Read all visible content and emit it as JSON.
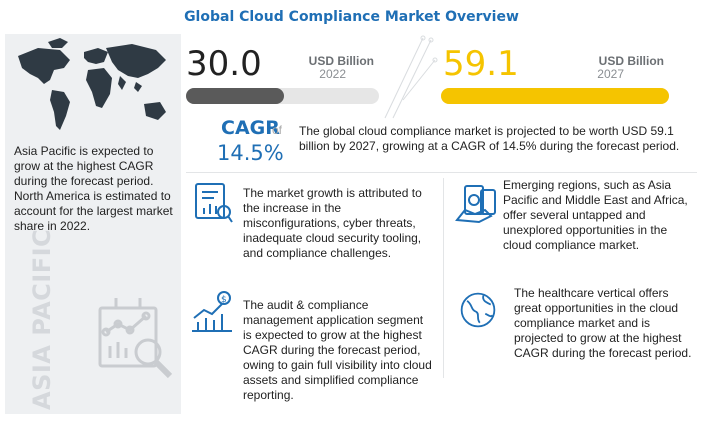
{
  "title": "Global Cloud Compliance Market Overview",
  "left_panel": {
    "text": "Asia Pacific is expected to grow at the highest CAGR during the forecast period. North America is estimated to account for the largest market share in 2022.",
    "region_label": "ASIA PACIFIC",
    "icons": [
      "world-map-icon",
      "analytics-magnifier-icon"
    ]
  },
  "stats": {
    "left": {
      "value": "30.0",
      "unit": "USD Billion",
      "year": "2022",
      "bar_fraction": 0.51,
      "color": "#5a5a5a",
      "track_color": "#e6e6e6"
    },
    "right": {
      "value": "59.1",
      "unit": "USD Billion",
      "year": "2027",
      "bar_fraction": 1.0,
      "color": "#f5c400",
      "track_color": "#e6e6e6"
    }
  },
  "cagr": {
    "label": "CAGR",
    "of": "of",
    "value": "14.5%"
  },
  "summary": "The global cloud compliance market is projected to be worth USD 59.1 billion by 2027, growing at a CAGR of 14.5% during the forecast period.",
  "insights": [
    {
      "icon": "analysis-report-icon",
      "text": "The market growth is attributed to the increase in the misconfigurations, cyber threats, inadequate cloud security tooling, and compliance challenges."
    },
    {
      "icon": "money-handshake-icon",
      "text": "Emerging regions, such as Asia Pacific and Middle East and Africa, offer several untapped and unexplored opportunities in the cloud compliance market."
    },
    {
      "icon": "growth-chart-icon",
      "text": "The audit & compliance management application segment is expected to grow at the highest CAGR during the forecast period, owing to gain full visibility into cloud assets and simplified compliance reporting."
    },
    {
      "icon": "globe-icon",
      "text": "The healthcare vertical offers great opportunities in the cloud compliance market and is projected to grow at the highest CAGR during the forecast period."
    }
  ],
  "colors": {
    "accent": "#1f6fb5",
    "highlight": "#f5c400",
    "dark_bar": "#5a5a5a",
    "panel_bg": "#eef0f2"
  }
}
